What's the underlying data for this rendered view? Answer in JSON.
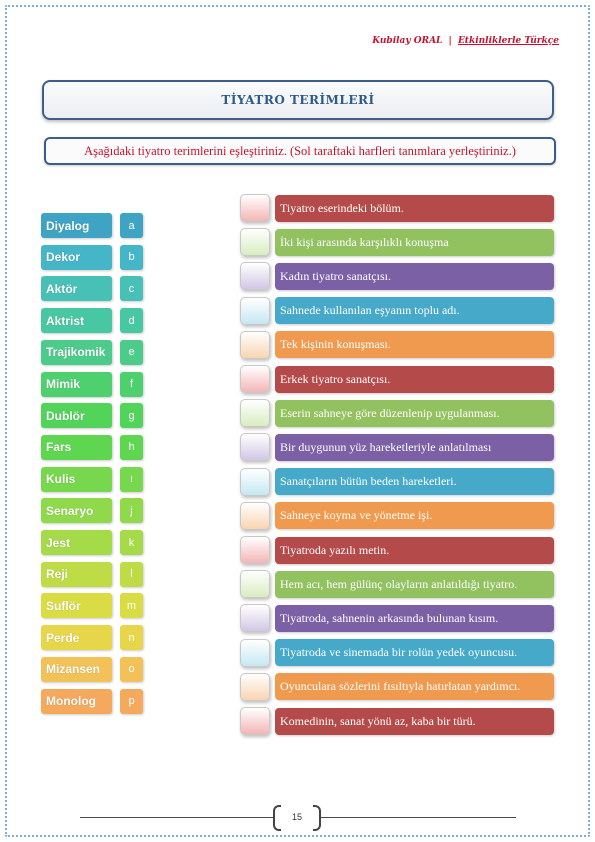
{
  "header": {
    "author": "Kubilay ORAL",
    "separator": "|",
    "subtitle": "Etkinliklerle Türkçe"
  },
  "title": "TİYATRO TERİMLERİ",
  "instruction": "Aşağıdaki tiyatro terimlerini eşleştiriniz. (Sol taraftaki harfleri tanımlara yerleştiriniz.)",
  "terms": [
    {
      "label": "Diyalog",
      "letter": "a",
      "color": "#3fa4c4"
    },
    {
      "label": "Dekor",
      "letter": "b",
      "color": "#45b5c8"
    },
    {
      "label": "Aktör",
      "letter": "c",
      "color": "#47c1b5"
    },
    {
      "label": "Aktrist",
      "letter": "d",
      "color": "#48c8a2"
    },
    {
      "label": "Trajikomik",
      "letter": "e",
      "color": "#4ccb8b"
    },
    {
      "label": "Mimik",
      "letter": "f",
      "color": "#4fd06f"
    },
    {
      "label": "Dublör",
      "letter": "g",
      "color": "#52d35a"
    },
    {
      "label": "Fars",
      "letter": "h",
      "color": "#5fd650"
    },
    {
      "label": "Kulis",
      "letter": "ı",
      "color": "#77d84d"
    },
    {
      "label": "Senaryo",
      "letter": "j",
      "color": "#8fd94b"
    },
    {
      "label": "Jest",
      "letter": "k",
      "color": "#a5da49"
    },
    {
      "label": "Reji",
      "letter": "l",
      "color": "#bfdb45"
    },
    {
      "label": "Suflör",
      "letter": "m",
      "color": "#d9dc43"
    },
    {
      "label": "Perde",
      "letter": "n",
      "color": "#e8d64a"
    },
    {
      "label": "Mizansen",
      "letter": "o",
      "color": "#f2c258"
    },
    {
      "label": "Monolog",
      "letter": "p",
      "color": "#f5a95c"
    }
  ],
  "definitions": [
    {
      "text": "Tiyatro eserindeki bölüm.",
      "color": "#b54a4a",
      "box_color": "#f4b5b5"
    },
    {
      "text": "İki kişi arasında karşılıklı konuşma",
      "color": "#92c160",
      "box_color": "#d9edbf"
    },
    {
      "text": "Kadın tiyatro sanatçısı.",
      "color": "#7b60a6",
      "box_color": "#d2c7e6"
    },
    {
      "text": "Sahnede kullanılan eşyanın toplu adı.",
      "color": "#46a9c9",
      "box_color": "#c5e8f3"
    },
    {
      "text": "Tek kişinin konuşması.",
      "color": "#f09a4f",
      "box_color": "#f9d4b0"
    },
    {
      "text": "Erkek tiyatro sanatçısı.",
      "color": "#b54a4a",
      "box_color": "#f4b5b5"
    },
    {
      "text": "Eserin sahneye göre düzenlenip uygulanması.",
      "color": "#92c160",
      "box_color": "#d9edbf"
    },
    {
      "text": "Bir duygunun yüz hareketleriyle anlatılması",
      "color": "#7b60a6",
      "box_color": "#d2c7e6"
    },
    {
      "text": "Sanatçıların bütün beden hareketleri.",
      "color": "#46a9c9",
      "box_color": "#c5e8f3"
    },
    {
      "text": "Sahneye koyma ve yönetme işi.",
      "color": "#f09a4f",
      "box_color": "#f9d4b0"
    },
    {
      "text": "Tiyatroda yazılı metin.",
      "color": "#b54a4a",
      "box_color": "#f4b5b5"
    },
    {
      "text": "Hem acı, hem gülünç olayların anlatıldığı tiyatro.",
      "color": "#92c160",
      "box_color": "#d9edbf"
    },
    {
      "text": "Tiyatroda, sahnenin arkasında bulunan kısım.",
      "color": "#7b60a6",
      "box_color": "#d2c7e6"
    },
    {
      "text": "Tiyatroda ve sinemada bir rolün yedek oyuncusu.",
      "color": "#46a9c9",
      "box_color": "#c5e8f3"
    },
    {
      "text": "Oyunculara sözlerini fısıltıyla hatırlatan yardımcı.",
      "color": "#f09a4f",
      "box_color": "#f9d4b0"
    },
    {
      "text": "Komedinin, sanat yönü az, kaba bir türü.",
      "color": "#b54a4a",
      "box_color": "#f4b5b5"
    }
  ],
  "page_number": "15"
}
